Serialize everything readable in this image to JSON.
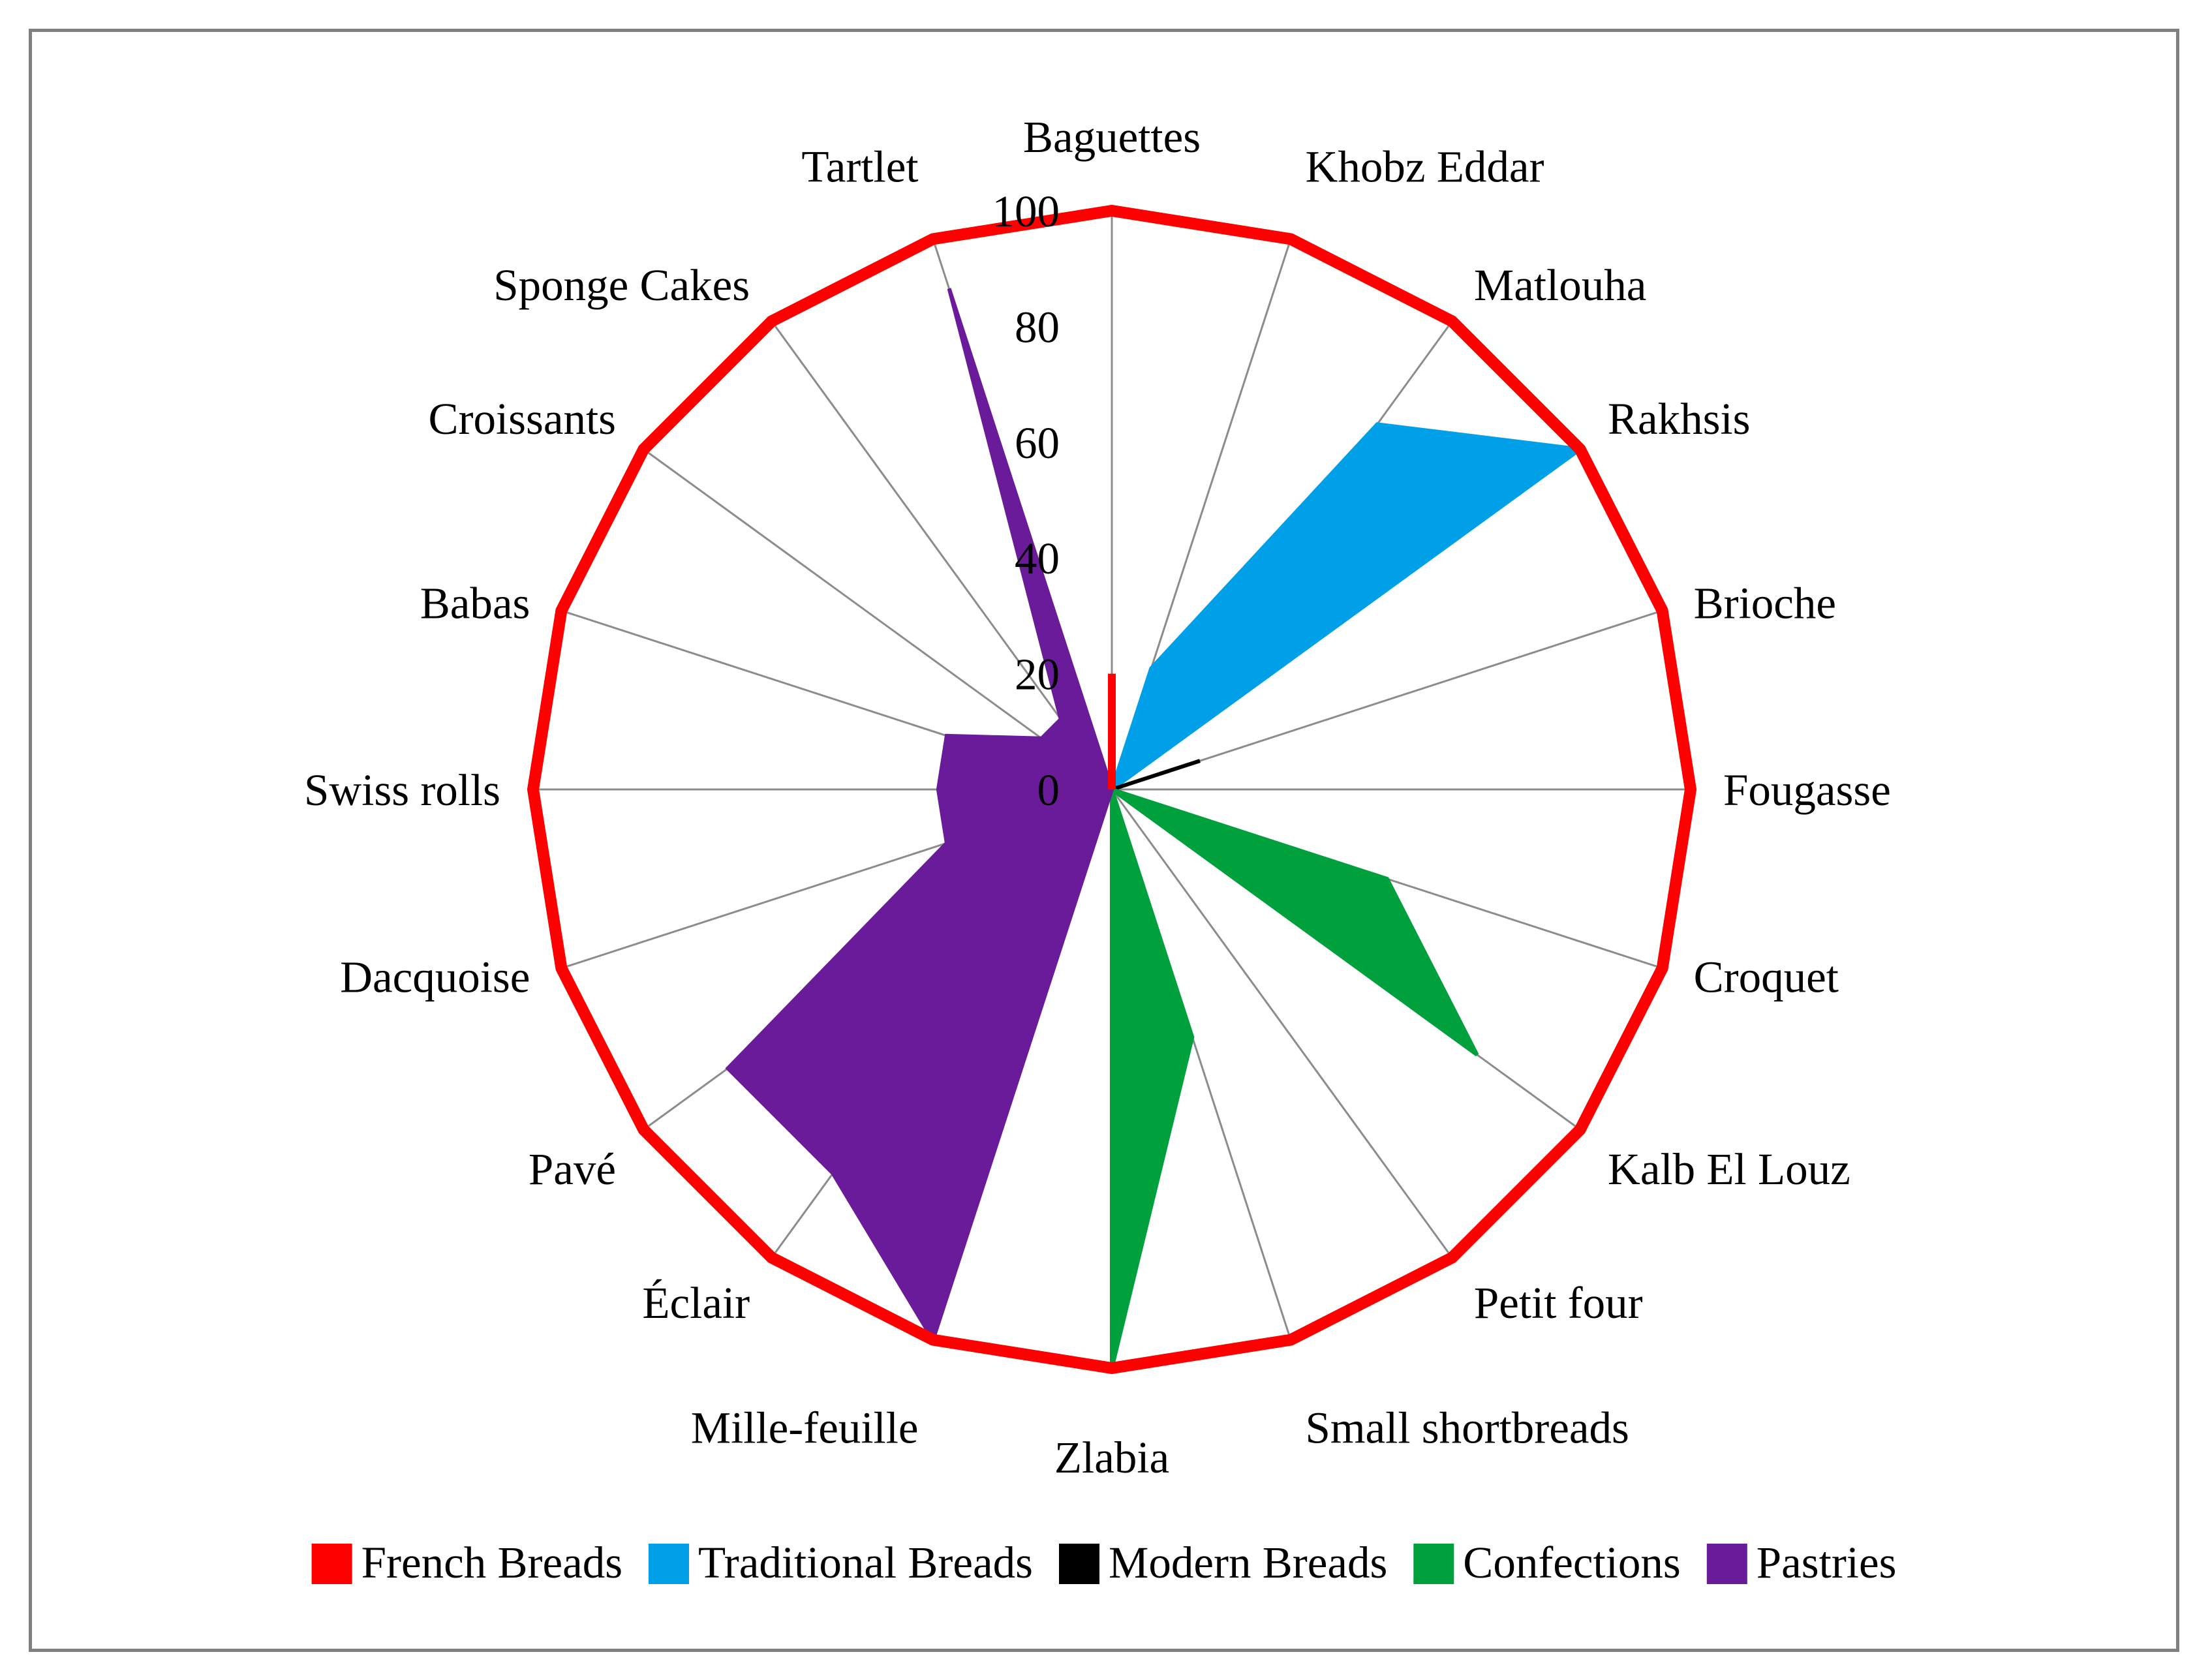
{
  "chart_data": {
    "type": "radar",
    "categories": [
      "Baguettes",
      "Khobz Eddar",
      "Matlouha",
      "Rakhsis",
      "Brioche",
      "Fougasse",
      "Croquet",
      "Kalb El Louz",
      "Petit four",
      "Small shortbreads",
      "Zlabia",
      "Mille-feuille",
      "Éclair",
      "Pavé",
      "Dacquoise",
      "Swiss rolls",
      "Babas",
      "Croissants",
      "Sponge Cakes",
      "Tartlet"
    ],
    "r_ticks": [
      "0",
      "20",
      "40",
      "60",
      "80",
      "100"
    ],
    "rlim": [
      0,
      100
    ],
    "grid": true,
    "legend_position": "bottom",
    "series": [
      {
        "name": "French Breads",
        "color": "#ff0000",
        "style": "line",
        "values": [
          100,
          100,
          100,
          100,
          100,
          100,
          100,
          100,
          100,
          100,
          100,
          100,
          100,
          100,
          100,
          100,
          100,
          100,
          100,
          100
        ]
      },
      {
        "name": "Traditional Breads",
        "color": "#00a0e9",
        "style": "filled",
        "values": [
          0,
          22,
          78,
          100,
          0,
          0,
          0,
          0,
          0,
          0,
          0,
          0,
          0,
          0,
          0,
          0,
          0,
          0,
          0,
          0
        ]
      },
      {
        "name": "Modern Breads",
        "color": "#000000",
        "style": "filled",
        "values": [
          0,
          0,
          0,
          0,
          16,
          0,
          0,
          0,
          0,
          0,
          0,
          0,
          0,
          0,
          0,
          0,
          0,
          0,
          0,
          0
        ]
      },
      {
        "name": "Confections",
        "color": "#00a03c",
        "style": "filled",
        "values": [
          0,
          0,
          0,
          0,
          0,
          0,
          50,
          78,
          0,
          45,
          100,
          0,
          0,
          0,
          0,
          0,
          0,
          0,
          0,
          0
        ]
      },
      {
        "name": "Pastries",
        "color": "#6a1b9a",
        "style": "filled",
        "values": [
          0,
          0,
          0,
          0,
          0,
          0,
          0,
          0,
          0,
          0,
          0,
          100,
          82,
          82,
          30,
          30,
          30,
          15,
          15,
          91
        ]
      }
    ],
    "baguette_spike": {
      "color": "#ff0000",
      "value": 20
    }
  }
}
